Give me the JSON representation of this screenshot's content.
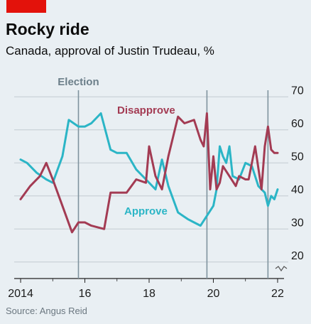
{
  "header": {
    "title": "Rocky ride",
    "subtitle": "Canada, approval of Justin Trudeau, %",
    "source": "Source: Angus Reid",
    "tag_color": "#e3120b"
  },
  "chart_data": {
    "type": "line",
    "title": "Rocky ride",
    "subtitle": "Canada, approval of Justin Trudeau, %",
    "xlim": [
      2013.8,
      2022.2
    ],
    "ylim": [
      15,
      72
    ],
    "y_ticks": [
      20,
      30,
      40,
      50,
      60,
      70
    ],
    "x_ticks": [
      {
        "value": 2014,
        "label": "2014"
      },
      {
        "value": 2016,
        "label": "16"
      },
      {
        "value": 2018,
        "label": "18"
      },
      {
        "value": 2020,
        "label": "20"
      },
      {
        "value": 2022,
        "label": "22"
      }
    ],
    "grid": true,
    "axis_break": true,
    "events": [
      {
        "x": 2015.8,
        "label": "Election"
      },
      {
        "x": 2019.8
      },
      {
        "x": 2021.7
      }
    ],
    "series": [
      {
        "name": "Approve",
        "color": "#2bb5c6",
        "x": [
          2014.0,
          2014.2,
          2014.5,
          2014.8,
          2015.0,
          2015.3,
          2015.5,
          2015.8,
          2016.0,
          2016.2,
          2016.5,
          2016.8,
          2017.0,
          2017.3,
          2017.6,
          2017.9,
          2018.2,
          2018.4,
          2018.6,
          2018.9,
          2019.2,
          2019.4,
          2019.6,
          2019.8,
          2020.0,
          2020.1,
          2020.2,
          2020.3,
          2020.4,
          2020.5,
          2020.6,
          2020.8,
          2021.0,
          2021.2,
          2021.4,
          2021.5,
          2021.6,
          2021.7,
          2021.8,
          2021.9,
          2022.0
        ],
        "values": [
          51,
          50,
          47,
          45,
          44,
          52,
          63,
          61,
          61,
          62,
          65,
          54,
          53,
          53,
          48,
          45,
          42,
          51,
          43,
          35,
          33,
          32,
          31,
          34,
          37,
          42,
          55,
          52,
          50,
          55,
          46,
          45,
          50,
          49,
          43,
          42,
          41,
          37,
          40,
          39,
          42
        ]
      },
      {
        "name": "Disapprove",
        "color": "#a33b53",
        "x": [
          2014.0,
          2014.3,
          2014.6,
          2014.8,
          2015.0,
          2015.3,
          2015.6,
          2015.8,
          2016.0,
          2016.2,
          2016.6,
          2016.8,
          2017.0,
          2017.3,
          2017.6,
          2017.9,
          2018.0,
          2018.2,
          2018.4,
          2018.6,
          2018.9,
          2019.1,
          2019.4,
          2019.6,
          2019.7,
          2019.8,
          2019.9,
          2020.0,
          2020.1,
          2020.2,
          2020.3,
          2020.5,
          2020.7,
          2020.8,
          2021.0,
          2021.1,
          2021.3,
          2021.5,
          2021.6,
          2021.7,
          2021.8,
          2021.9,
          2022.0
        ],
        "values": [
          39,
          43,
          46,
          50,
          45,
          37,
          29,
          32,
          32,
          31,
          30,
          41,
          41,
          41,
          45,
          44,
          55,
          46,
          42,
          52,
          64,
          62,
          63,
          57,
          55,
          65,
          42,
          52,
          42,
          44,
          49,
          46,
          43,
          46,
          45,
          45,
          55,
          42,
          55,
          61,
          54,
          53,
          53
        ]
      }
    ]
  }
}
